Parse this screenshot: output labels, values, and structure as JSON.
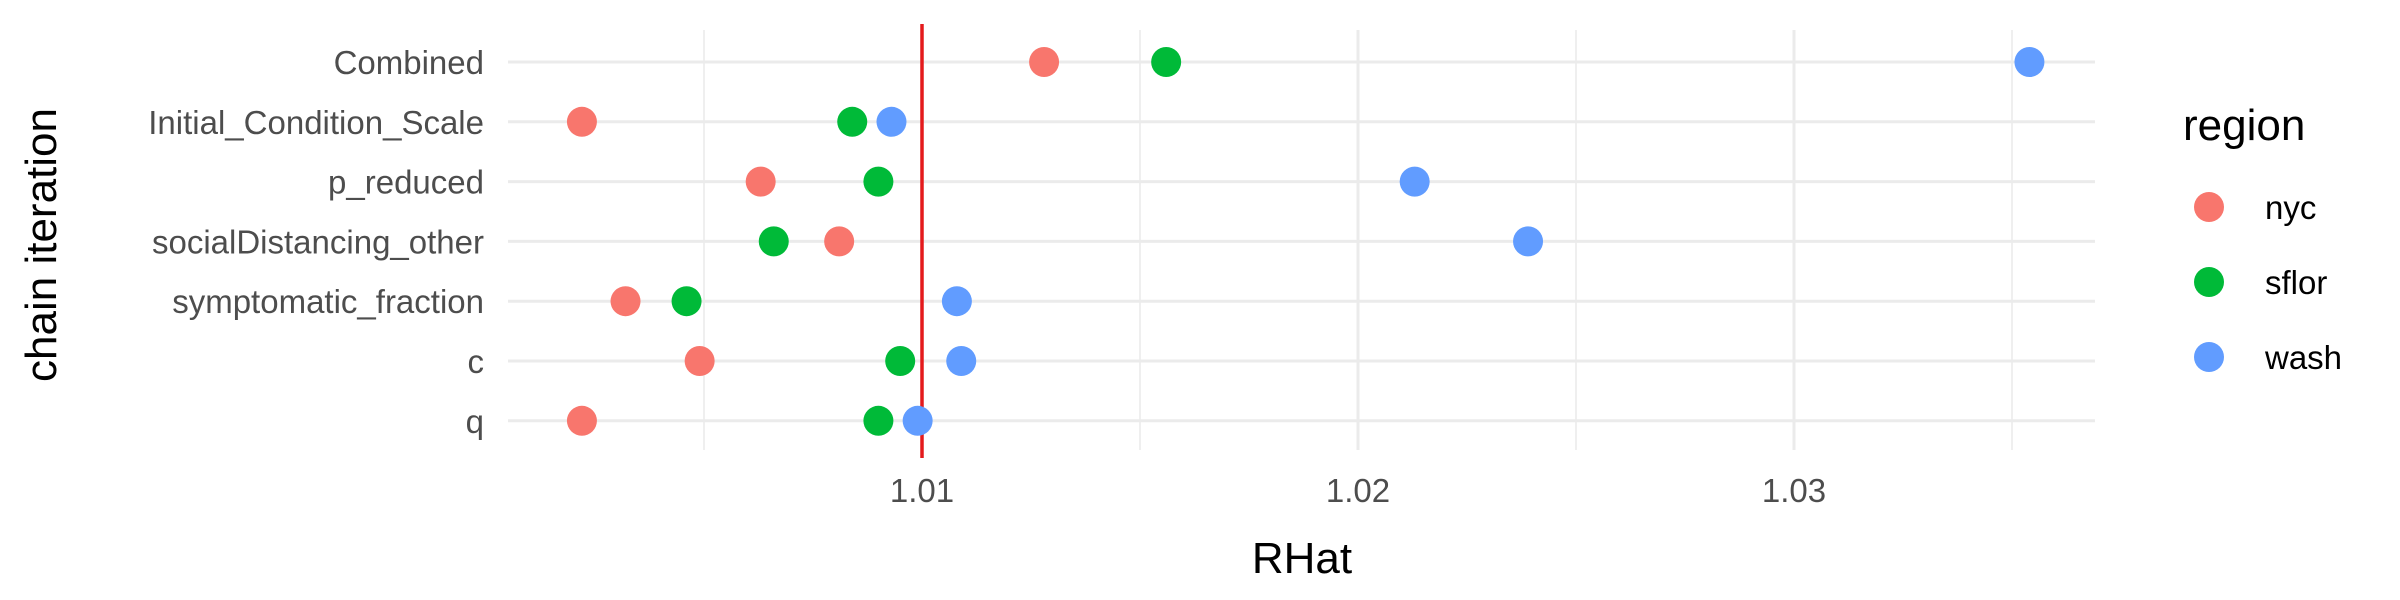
{
  "chart_data": {
    "type": "scatter",
    "title": "",
    "xlabel": "RHat",
    "ylabel": "chain iteration",
    "xlim": [
      1.0,
      1.0385
    ],
    "x_ticks": [
      1.01,
      1.02,
      1.03
    ],
    "x_tick_labels": [
      "1.01",
      "1.02",
      "1.03"
    ],
    "grid": true,
    "reference_line": {
      "x": 1.01,
      "color": "#e41a1c"
    },
    "categories": [
      "Combined",
      "Initial_Condition_Scale",
      "p_reduced",
      "socialDistancing_other",
      "symptomatic_fraction",
      "c",
      "q"
    ],
    "legend": {
      "title": "region",
      "placement": "right"
    },
    "series": [
      {
        "name": "nyc",
        "color": "#F8766D",
        "values": [
          1.0128,
          1.0022,
          1.0063,
          1.0081,
          1.0032,
          1.0049,
          1.0022
        ]
      },
      {
        "name": "sflor",
        "color": "#00BA38",
        "values": [
          1.0156,
          1.0084,
          1.009,
          1.0066,
          1.0046,
          1.0095,
          1.009
        ]
      },
      {
        "name": "wash",
        "color": "#619CFF",
        "values": [
          1.0354,
          1.0093,
          1.0213,
          1.0239,
          1.0108,
          1.0109,
          1.0099
        ]
      }
    ]
  }
}
